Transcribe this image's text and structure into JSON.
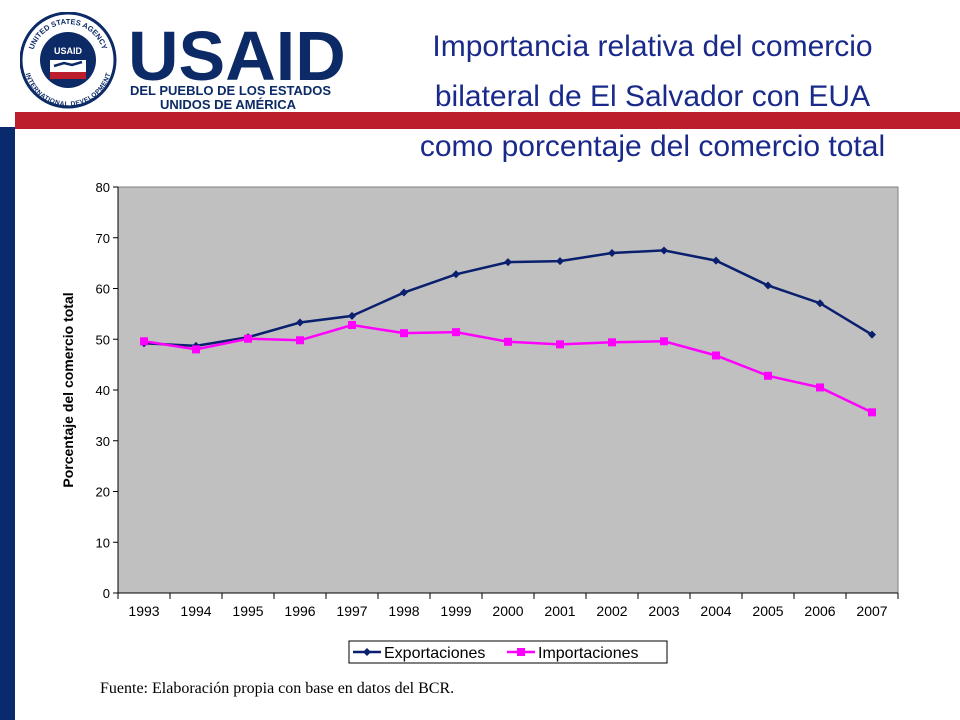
{
  "colors": {
    "left_bar": "#0a2a6e",
    "red_band": "#bd1e2c",
    "logo_blue": "#0c2a66",
    "logo_red": "#bd1e2c",
    "title": "#1a2a8a",
    "plot_bg": "#c0c0c0",
    "series_export": "#0a1f6e",
    "series_import": "#ff00ff"
  },
  "logo": {
    "seal_ring_top": "UNITED STATES AGENCY",
    "seal_ring_bottom": "INTERNATIONAL DEVELOPMENT",
    "seal_label": "USAID",
    "wordmark": "USAID",
    "tagline_line1": "DEL PUEBLO DE LOS ESTADOS",
    "tagline_line2": "UNIDOS DE AMÉRICA"
  },
  "title_lines": [
    "Importancia relativa del comercio",
    "bilateral de El Salvador con EUA",
    "como porcentaje del comercio total"
  ],
  "source_note": "Fuente: Elaboración propia con base en datos del BCR.",
  "chart_data": {
    "type": "line",
    "title": "",
    "xlabel": "",
    "ylabel": "Porcentaje del comercio total",
    "x": [
      "1993",
      "1994",
      "1995",
      "1996",
      "1997",
      "1998",
      "1999",
      "2000",
      "2001",
      "2002",
      "2003",
      "2004",
      "2005",
      "2006",
      "2007"
    ],
    "ylim": [
      0,
      80
    ],
    "yticks": [
      0,
      10,
      20,
      30,
      40,
      50,
      60,
      70,
      80
    ],
    "grid": false,
    "legend_position": "bottom",
    "series": [
      {
        "name": "Exportaciones",
        "marker": "diamond",
        "values": [
          49.2,
          48.7,
          50.4,
          53.3,
          54.6,
          59.2,
          62.8,
          65.2,
          65.4,
          67.0,
          67.5,
          65.5,
          60.6,
          57.1,
          50.9
        ]
      },
      {
        "name": "Importaciones",
        "marker": "square",
        "values": [
          49.6,
          48.0,
          50.1,
          49.8,
          52.8,
          51.2,
          51.4,
          49.5,
          49.0,
          49.4,
          49.6,
          46.8,
          42.8,
          40.5,
          35.6
        ]
      }
    ]
  }
}
